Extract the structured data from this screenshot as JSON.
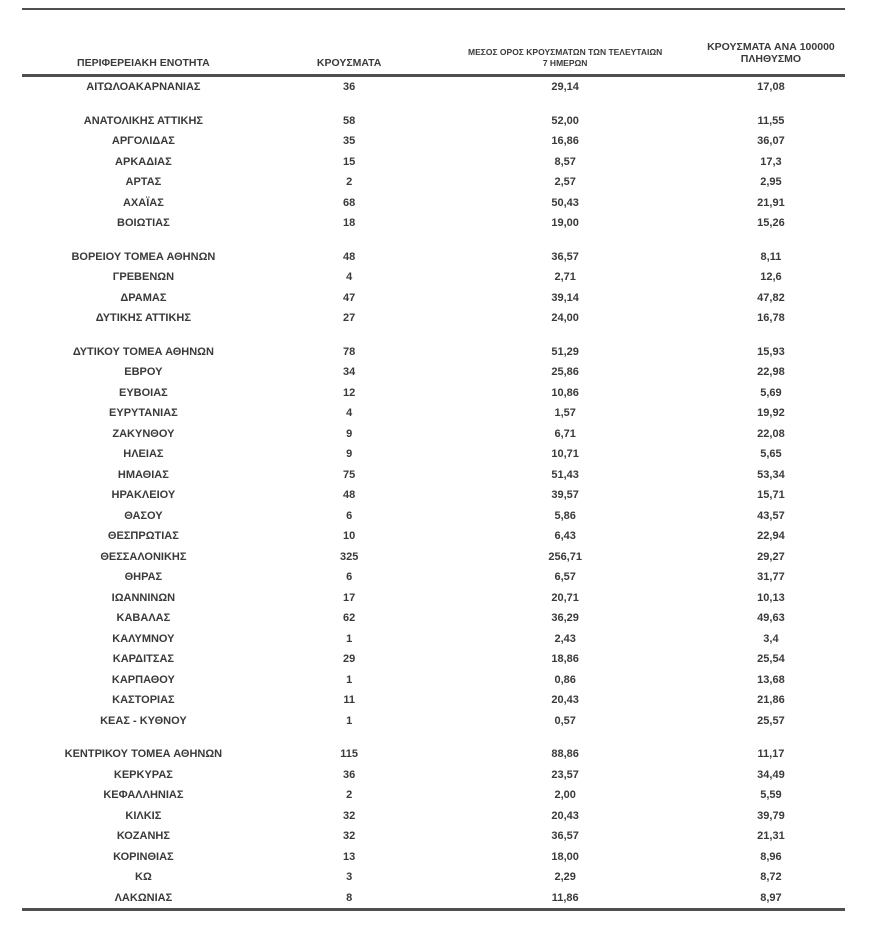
{
  "colors": {
    "background": "#ffffff",
    "text": "#3a3a3a",
    "rule": "#4f4f4f"
  },
  "table": {
    "columns": [
      {
        "label": "ΠΕΡΙΦΕΡΕΙΑΚΗ ΕΝΟΤΗΤΑ"
      },
      {
        "label": "ΚΡΟΥΣΜΑΤΑ"
      },
      {
        "label": "ΜΕΣΟΣ ΟΡΟΣ ΚΡΟΥΣΜΑΤΩΝ ΤΩΝ ΤΕΛΕΥΤΑΙΩΝ 7 ΗΜΕΡΩΝ"
      },
      {
        "label": "ΚΡΟΥΣΜΑΤΑ ΑΝΑ 100000 ΠΛΗΘΥΣΜΟ"
      }
    ],
    "groups": [
      [
        {
          "region": "ΑΙΤΩΛΟΑΚΑΡΝΑΝΙΑΣ",
          "cases": "36",
          "avg7": "29,14",
          "per100k": "17,08"
        }
      ],
      [
        {
          "region": "ΑΝΑΤΟΛΙΚΗΣ ΑΤΤΙΚΗΣ",
          "cases": "58",
          "avg7": "52,00",
          "per100k": "11,55"
        },
        {
          "region": "ΑΡΓΟΛΙΔΑΣ",
          "cases": "35",
          "avg7": "16,86",
          "per100k": "36,07"
        },
        {
          "region": "ΑΡΚΑΔΙΑΣ",
          "cases": "15",
          "avg7": "8,57",
          "per100k": "17,3"
        },
        {
          "region": "ΑΡΤΑΣ",
          "cases": "2",
          "avg7": "2,57",
          "per100k": "2,95"
        },
        {
          "region": "ΑΧΑΪΑΣ",
          "cases": "68",
          "avg7": "50,43",
          "per100k": "21,91"
        },
        {
          "region": "ΒΟΙΩΤΙΑΣ",
          "cases": "18",
          "avg7": "19,00",
          "per100k": "15,26"
        }
      ],
      [
        {
          "region": "ΒΟΡΕΙΟΥ ΤΟΜΕΑ ΑΘΗΝΩΝ",
          "cases": "48",
          "avg7": "36,57",
          "per100k": "8,11"
        },
        {
          "region": "ΓΡΕΒΕΝΩΝ",
          "cases": "4",
          "avg7": "2,71",
          "per100k": "12,6"
        },
        {
          "region": "ΔΡΑΜΑΣ",
          "cases": "47",
          "avg7": "39,14",
          "per100k": "47,82"
        },
        {
          "region": "ΔΥΤΙΚΗΣ ΑΤΤΙΚΗΣ",
          "cases": "27",
          "avg7": "24,00",
          "per100k": "16,78"
        }
      ],
      [
        {
          "region": "ΔΥΤΙΚΟΥ ΤΟΜΕΑ ΑΘΗΝΩΝ",
          "cases": "78",
          "avg7": "51,29",
          "per100k": "15,93"
        },
        {
          "region": "ΕΒΡΟΥ",
          "cases": "34",
          "avg7": "25,86",
          "per100k": "22,98"
        },
        {
          "region": "ΕΥΒΟΙΑΣ",
          "cases": "12",
          "avg7": "10,86",
          "per100k": "5,69"
        },
        {
          "region": "ΕΥΡΥΤΑΝΙΑΣ",
          "cases": "4",
          "avg7": "1,57",
          "per100k": "19,92"
        },
        {
          "region": "ΖΑΚΥΝΘΟΥ",
          "cases": "9",
          "avg7": "6,71",
          "per100k": "22,08"
        },
        {
          "region": "ΗΛΕΙΑΣ",
          "cases": "9",
          "avg7": "10,71",
          "per100k": "5,65"
        },
        {
          "region": "ΗΜΑΘΙΑΣ",
          "cases": "75",
          "avg7": "51,43",
          "per100k": "53,34"
        },
        {
          "region": "ΗΡΑΚΛΕΙΟΥ",
          "cases": "48",
          "avg7": "39,57",
          "per100k": "15,71"
        },
        {
          "region": "ΘΑΣΟΥ",
          "cases": "6",
          "avg7": "5,86",
          "per100k": "43,57"
        },
        {
          "region": "ΘΕΣΠΡΩΤΙΑΣ",
          "cases": "10",
          "avg7": "6,43",
          "per100k": "22,94"
        },
        {
          "region": "ΘΕΣΣΑΛΟΝΙΚΗΣ",
          "cases": "325",
          "avg7": "256,71",
          "per100k": "29,27"
        },
        {
          "region": "ΘΗΡΑΣ",
          "cases": "6",
          "avg7": "6,57",
          "per100k": "31,77"
        },
        {
          "region": "ΙΩΑΝΝΙΝΩΝ",
          "cases": "17",
          "avg7": "20,71",
          "per100k": "10,13"
        },
        {
          "region": "ΚΑΒΑΛΑΣ",
          "cases": "62",
          "avg7": "36,29",
          "per100k": "49,63"
        },
        {
          "region": "ΚΑΛΥΜΝΟΥ",
          "cases": "1",
          "avg7": "2,43",
          "per100k": "3,4"
        },
        {
          "region": "ΚΑΡΔΙΤΣΑΣ",
          "cases": "29",
          "avg7": "18,86",
          "per100k": "25,54"
        },
        {
          "region": "ΚΑΡΠΑΘΟΥ",
          "cases": "1",
          "avg7": "0,86",
          "per100k": "13,68"
        },
        {
          "region": "ΚΑΣΤΟΡΙΑΣ",
          "cases": "11",
          "avg7": "20,43",
          "per100k": "21,86"
        },
        {
          "region": "ΚΕΑΣ - ΚΥΘΝΟΥ",
          "cases": "1",
          "avg7": "0,57",
          "per100k": "25,57"
        }
      ],
      [
        {
          "region": "ΚΕΝΤΡΙΚΟΥ ΤΟΜΕΑ ΑΘΗΝΩΝ",
          "cases": "115",
          "avg7": "88,86",
          "per100k": "11,17"
        },
        {
          "region": "ΚΕΡΚΥΡΑΣ",
          "cases": "36",
          "avg7": "23,57",
          "per100k": "34,49"
        },
        {
          "region": "ΚΕΦΑΛΛΗΝΙΑΣ",
          "cases": "2",
          "avg7": "2,00",
          "per100k": "5,59"
        },
        {
          "region": "ΚΙΛΚΙΣ",
          "cases": "32",
          "avg7": "20,43",
          "per100k": "39,79"
        },
        {
          "region": "ΚΟΖΑΝΗΣ",
          "cases": "32",
          "avg7": "36,57",
          "per100k": "21,31"
        },
        {
          "region": "ΚΟΡΙΝΘΙΑΣ",
          "cases": "13",
          "avg7": "18,00",
          "per100k": "8,96"
        },
        {
          "region": "ΚΩ",
          "cases": "3",
          "avg7": "2,29",
          "per100k": "8,72"
        },
        {
          "region": "ΛΑΚΩΝΙΑΣ",
          "cases": "8",
          "avg7": "11,86",
          "per100k": "8,97"
        }
      ]
    ]
  }
}
